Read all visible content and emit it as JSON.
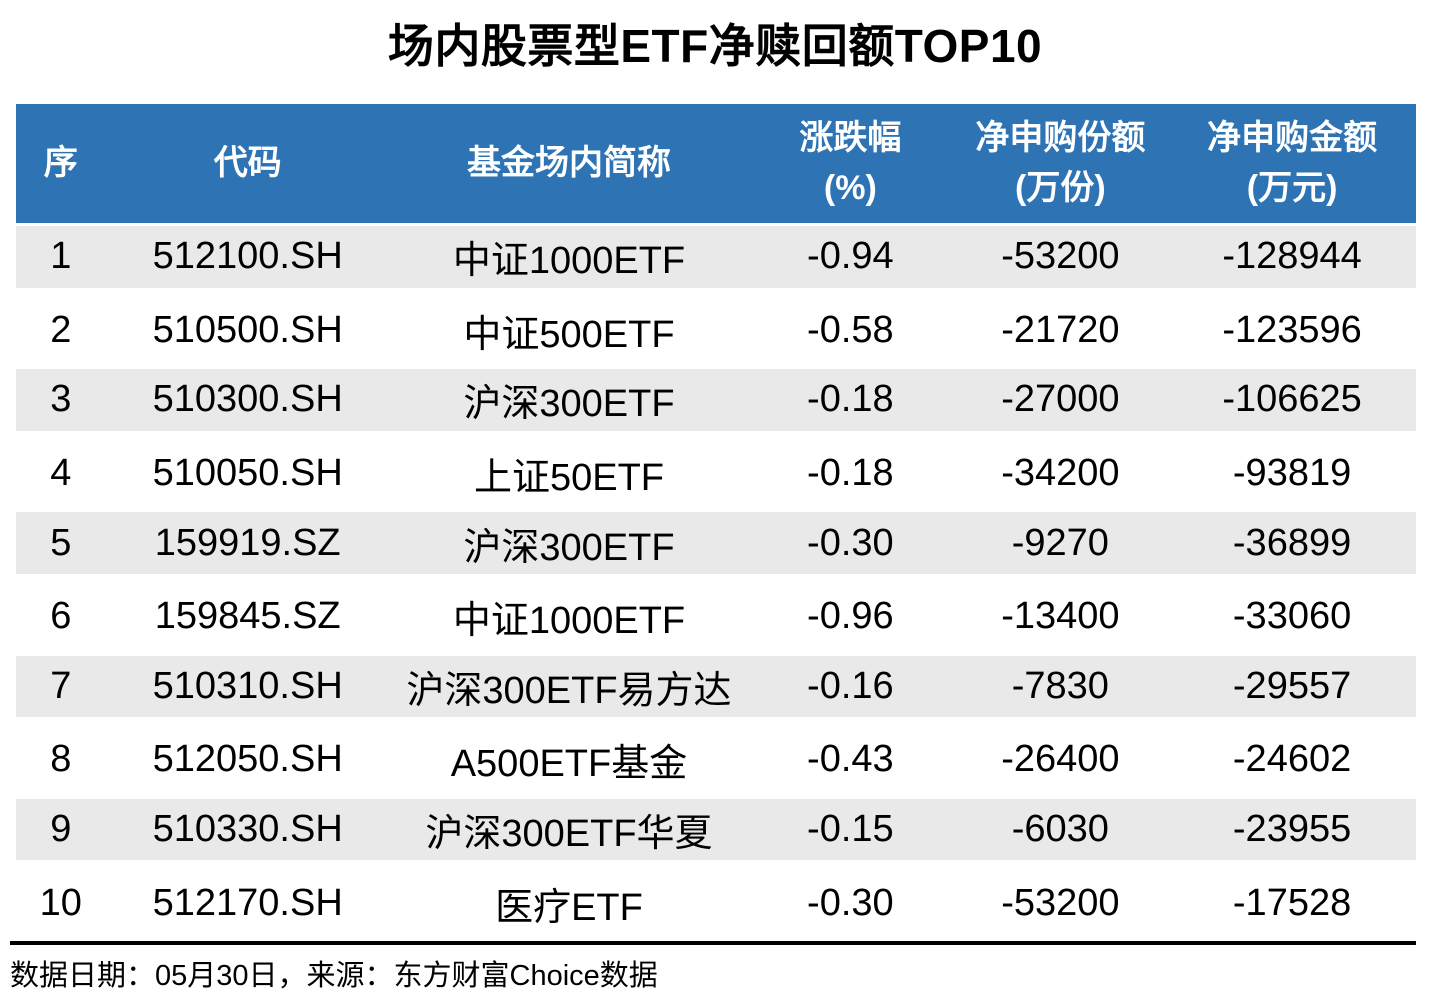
{
  "title": "场内股票型ETF净赎回额TOP10",
  "colors": {
    "header_bg": "#2E74B5",
    "stripe_bg": "#E9E9E9",
    "header_text": "#FFFFFF",
    "body_text": "#000000"
  },
  "chart_data": {
    "type": "table",
    "title": "场内股票型ETF净赎回额TOP10",
    "columns": [
      {
        "label": "序",
        "unit": ""
      },
      {
        "label": "代码",
        "unit": ""
      },
      {
        "label": "基金场内简称",
        "unit": ""
      },
      {
        "label": "涨跌幅",
        "unit": "(%)"
      },
      {
        "label": "净申购份额",
        "unit": "(万份)"
      },
      {
        "label": "净申购金额",
        "unit": "(万元)"
      }
    ],
    "rows": [
      [
        "1",
        "512100.SH",
        "中证1000ETF",
        "-0.94",
        "-53200",
        "-128944"
      ],
      [
        "2",
        "510500.SH",
        "中证500ETF",
        "-0.58",
        "-21720",
        "-123596"
      ],
      [
        "3",
        "510300.SH",
        "沪深300ETF",
        "-0.18",
        "-27000",
        "-106625"
      ],
      [
        "4",
        "510050.SH",
        "上证50ETF",
        "-0.18",
        "-34200",
        "-93819"
      ],
      [
        "5",
        "159919.SZ",
        "沪深300ETF",
        "-0.30",
        "-9270",
        "-36899"
      ],
      [
        "6",
        "159845.SZ",
        "中证1000ETF",
        "-0.96",
        "-13400",
        "-33060"
      ],
      [
        "7",
        "510310.SH",
        "沪深300ETF易方达",
        "-0.16",
        "-7830",
        "-29557"
      ],
      [
        "8",
        "512050.SH",
        "A500ETF基金",
        "-0.43",
        "-26400",
        "-24602"
      ],
      [
        "9",
        "510330.SH",
        "沪深300ETF华夏",
        "-0.15",
        "-6030",
        "-23955"
      ],
      [
        "10",
        "512170.SH",
        "医疗ETF",
        "-0.30",
        "-53200",
        "-17528"
      ]
    ],
    "source_note": "数据日期：05月30日，来源：东方财富Choice数据"
  }
}
